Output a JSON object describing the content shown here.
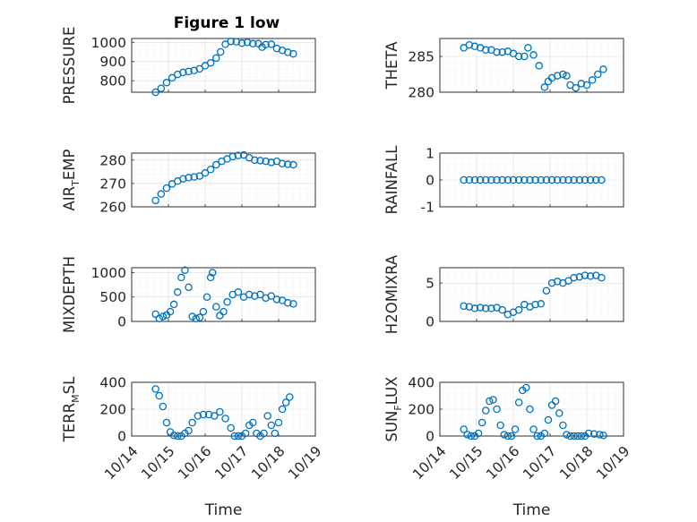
{
  "figure": {
    "title": "Figure 1 low",
    "colors": {
      "series": "#0072BD",
      "axes": "#262626",
      "grid": "#d9d9d9"
    }
  },
  "chart_data": [
    {
      "type": "scatter",
      "id": "pressure",
      "title": "Figure 1 low",
      "ylabel": "PRESSURE",
      "xlabel": "",
      "xlim": [
        0,
        5
      ],
      "ylim": [
        740,
        1020
      ],
      "yticks": [
        800,
        900,
        1000
      ],
      "xticks": [
        0,
        1,
        2,
        3,
        4,
        5
      ],
      "xticklabels": [],
      "grid": true,
      "points": [
        [
          0.65,
          740
        ],
        [
          0.8,
          760
        ],
        [
          0.95,
          790
        ],
        [
          1.1,
          815
        ],
        [
          1.25,
          833
        ],
        [
          1.4,
          843
        ],
        [
          1.55,
          848
        ],
        [
          1.7,
          853
        ],
        [
          1.85,
          862
        ],
        [
          2.0,
          878
        ],
        [
          2.15,
          893
        ],
        [
          2.3,
          918
        ],
        [
          2.42,
          950
        ],
        [
          2.55,
          990
        ],
        [
          2.7,
          1005
        ],
        [
          2.85,
          1003
        ],
        [
          3.0,
          996
        ],
        [
          3.15,
          1000
        ],
        [
          3.3,
          993
        ],
        [
          3.45,
          993
        ],
        [
          3.55,
          975
        ],
        [
          3.65,
          988
        ],
        [
          3.8,
          990
        ],
        [
          3.95,
          968
        ],
        [
          4.1,
          958
        ],
        [
          4.25,
          948
        ],
        [
          4.4,
          940
        ]
      ],
      "series_markers": "o"
    },
    {
      "type": "scatter",
      "id": "theta",
      "ylabel": "THETA",
      "xlabel": "",
      "xlim": [
        0,
        5
      ],
      "ylim": [
        280,
        287.5
      ],
      "yticks": [
        280,
        285
      ],
      "xticks": [
        0,
        1,
        2,
        3,
        4,
        5
      ],
      "xticklabels": [],
      "grid": true,
      "points": [
        [
          0.65,
          286.2
        ],
        [
          0.8,
          286.6
        ],
        [
          0.95,
          286.4
        ],
        [
          1.1,
          286.2
        ],
        [
          1.25,
          285.9
        ],
        [
          1.4,
          285.9
        ],
        [
          1.55,
          285.6
        ],
        [
          1.7,
          285.6
        ],
        [
          1.85,
          285.7
        ],
        [
          2.0,
          285.4
        ],
        [
          2.15,
          285.0
        ],
        [
          2.3,
          285.0
        ],
        [
          2.4,
          286.2
        ],
        [
          2.55,
          285.2
        ],
        [
          2.7,
          283.7
        ],
        [
          2.85,
          280.7
        ],
        [
          2.95,
          281.5
        ],
        [
          3.05,
          282.0
        ],
        [
          3.2,
          282.3
        ],
        [
          3.35,
          282.5
        ],
        [
          3.45,
          282.3
        ],
        [
          3.55,
          281.0
        ],
        [
          3.7,
          280.6
        ],
        [
          3.85,
          281.2
        ],
        [
          4.0,
          281.0
        ],
        [
          4.15,
          281.7
        ],
        [
          4.3,
          282.5
        ],
        [
          4.45,
          283.2
        ]
      ],
      "series_markers": "o"
    },
    {
      "type": "scatter",
      "id": "air_temp",
      "ylabel": "AIR_TEMP",
      "ylabel_main": "AIR",
      "ylabel_sub": "T",
      "ylabel_tail": "EMP",
      "xlabel": "",
      "xlim": [
        0,
        5
      ],
      "ylim": [
        260,
        283
      ],
      "yticks": [
        260,
        270,
        280
      ],
      "xticks": [
        0,
        1,
        2,
        3,
        4,
        5
      ],
      "xticklabels": [],
      "grid": true,
      "points": [
        [
          0.65,
          262.7
        ],
        [
          0.8,
          265.5
        ],
        [
          0.95,
          268.0
        ],
        [
          1.1,
          269.8
        ],
        [
          1.25,
          271.0
        ],
        [
          1.4,
          272.0
        ],
        [
          1.55,
          272.5
        ],
        [
          1.7,
          272.8
        ],
        [
          1.85,
          273.2
        ],
        [
          2.0,
          274.5
        ],
        [
          2.15,
          276.0
        ],
        [
          2.3,
          278.0
        ],
        [
          2.45,
          279.5
        ],
        [
          2.6,
          280.5
        ],
        [
          2.75,
          281.5
        ],
        [
          2.9,
          282.0
        ],
        [
          3.05,
          282.2
        ],
        [
          3.2,
          281.0
        ],
        [
          3.35,
          280.0
        ],
        [
          3.5,
          279.8
        ],
        [
          3.65,
          279.5
        ],
        [
          3.8,
          279.0
        ],
        [
          3.95,
          279.5
        ],
        [
          4.1,
          278.5
        ],
        [
          4.25,
          278.2
        ],
        [
          4.4,
          278.0
        ]
      ],
      "series_markers": "o"
    },
    {
      "type": "scatter",
      "id": "rainfall",
      "ylabel": "RAINFALL",
      "xlabel": "",
      "xlim": [
        0,
        5
      ],
      "ylim": [
        -1,
        1
      ],
      "yticks": [
        -1,
        0,
        1
      ],
      "xticks": [
        0,
        1,
        2,
        3,
        4,
        5
      ],
      "xticklabels": [],
      "grid": true,
      "points": [
        [
          0.65,
          0
        ],
        [
          0.8,
          0
        ],
        [
          0.95,
          0
        ],
        [
          1.1,
          0
        ],
        [
          1.25,
          0
        ],
        [
          1.4,
          0
        ],
        [
          1.55,
          0
        ],
        [
          1.7,
          0
        ],
        [
          1.85,
          0
        ],
        [
          2.0,
          0
        ],
        [
          2.15,
          0
        ],
        [
          2.3,
          0
        ],
        [
          2.45,
          0
        ],
        [
          2.6,
          0
        ],
        [
          2.75,
          0
        ],
        [
          2.9,
          0
        ],
        [
          3.05,
          0
        ],
        [
          3.2,
          0
        ],
        [
          3.35,
          0
        ],
        [
          3.5,
          0
        ],
        [
          3.65,
          0
        ],
        [
          3.8,
          0
        ],
        [
          3.95,
          0
        ],
        [
          4.1,
          0
        ],
        [
          4.25,
          0
        ],
        [
          4.4,
          0
        ]
      ],
      "series_markers": "o"
    },
    {
      "type": "scatter",
      "id": "mixdepth",
      "ylabel": "MIXDEPTH",
      "xlabel": "",
      "xlim": [
        0,
        5
      ],
      "ylim": [
        0,
        1100
      ],
      "yticks": [
        0,
        500,
        1000
      ],
      "xticks": [
        0,
        1,
        2,
        3,
        4,
        5
      ],
      "xticklabels": [],
      "grid": true,
      "points": [
        [
          0.65,
          150
        ],
        [
          0.75,
          60
        ],
        [
          0.85,
          100
        ],
        [
          0.95,
          130
        ],
        [
          1.05,
          200
        ],
        [
          1.15,
          350
        ],
        [
          1.25,
          600
        ],
        [
          1.35,
          900
        ],
        [
          1.45,
          1050
        ],
        [
          1.55,
          700
        ],
        [
          1.65,
          100
        ],
        [
          1.75,
          60
        ],
        [
          1.85,
          80
        ],
        [
          1.95,
          200
        ],
        [
          2.05,
          500
        ],
        [
          2.15,
          900
        ],
        [
          2.2,
          1000
        ],
        [
          2.3,
          300
        ],
        [
          2.4,
          120
        ],
        [
          2.5,
          200
        ],
        [
          2.6,
          400
        ],
        [
          2.75,
          550
        ],
        [
          2.9,
          600
        ],
        [
          3.05,
          500
        ],
        [
          3.2,
          550
        ],
        [
          3.35,
          520
        ],
        [
          3.5,
          550
        ],
        [
          3.65,
          480
        ],
        [
          3.8,
          520
        ],
        [
          3.95,
          450
        ],
        [
          4.1,
          430
        ],
        [
          4.25,
          380
        ],
        [
          4.4,
          360
        ]
      ],
      "series_markers": "o"
    },
    {
      "type": "scatter",
      "id": "h2omixra",
      "ylabel": "H2OMIXRA",
      "xlabel": "",
      "xlim": [
        0,
        5
      ],
      "ylim": [
        0,
        7
      ],
      "yticks": [
        0,
        5
      ],
      "xticks": [
        0,
        1,
        2,
        3,
        4,
        5
      ],
      "xticklabels": [],
      "grid": true,
      "points": [
        [
          0.65,
          2.0
        ],
        [
          0.8,
          1.9
        ],
        [
          0.95,
          1.7
        ],
        [
          1.1,
          1.8
        ],
        [
          1.25,
          1.7
        ],
        [
          1.4,
          1.7
        ],
        [
          1.55,
          1.8
        ],
        [
          1.7,
          1.5
        ],
        [
          1.85,
          0.9
        ],
        [
          2.0,
          1.2
        ],
        [
          2.15,
          1.5
        ],
        [
          2.3,
          2.2
        ],
        [
          2.45,
          1.9
        ],
        [
          2.6,
          2.2
        ],
        [
          2.75,
          2.3
        ],
        [
          2.9,
          4.0
        ],
        [
          3.05,
          5.0
        ],
        [
          3.2,
          5.2
        ],
        [
          3.35,
          5.0
        ],
        [
          3.5,
          5.3
        ],
        [
          3.65,
          5.7
        ],
        [
          3.8,
          5.8
        ],
        [
          3.95,
          6.0
        ],
        [
          4.1,
          5.9
        ],
        [
          4.25,
          6.0
        ],
        [
          4.4,
          5.7
        ]
      ],
      "series_markers": "o"
    },
    {
      "type": "scatter",
      "id": "terr_msl",
      "ylabel": "TERR_MSL",
      "ylabel_main": "TERR",
      "ylabel_sub": "M",
      "ylabel_tail": "SL",
      "xlabel": "Time",
      "xlim": [
        0,
        5
      ],
      "ylim": [
        0,
        400
      ],
      "yticks": [
        0,
        200,
        400
      ],
      "xticks": [
        0,
        1,
        2,
        3,
        4,
        5
      ],
      "xticklabels": [
        "10/14",
        "10/15",
        "10/16",
        "10/17",
        "10/18",
        "10/19"
      ],
      "grid": true,
      "points": [
        [
          0.65,
          350
        ],
        [
          0.75,
          300
        ],
        [
          0.85,
          220
        ],
        [
          0.95,
          100
        ],
        [
          1.05,
          30
        ],
        [
          1.15,
          5
        ],
        [
          1.25,
          0
        ],
        [
          1.35,
          0
        ],
        [
          1.45,
          20
        ],
        [
          1.55,
          40
        ],
        [
          1.65,
          100
        ],
        [
          1.8,
          150
        ],
        [
          1.95,
          160
        ],
        [
          2.1,
          160
        ],
        [
          2.25,
          150
        ],
        [
          2.4,
          180
        ],
        [
          2.55,
          130
        ],
        [
          2.7,
          60
        ],
        [
          2.8,
          0
        ],
        [
          2.9,
          0
        ],
        [
          3.0,
          0
        ],
        [
          3.1,
          20
        ],
        [
          3.2,
          80
        ],
        [
          3.3,
          100
        ],
        [
          3.4,
          20
        ],
        [
          3.5,
          0
        ],
        [
          3.6,
          20
        ],
        [
          3.7,
          150
        ],
        [
          3.8,
          80
        ],
        [
          3.9,
          20
        ],
        [
          4.0,
          100
        ],
        [
          4.1,
          200
        ],
        [
          4.2,
          250
        ],
        [
          4.3,
          290
        ]
      ],
      "series_markers": "o"
    },
    {
      "type": "scatter",
      "id": "sun_flux",
      "ylabel": "SUN_FLUX",
      "ylabel_main": "SUN",
      "ylabel_sub": "F",
      "ylabel_tail": "LUX",
      "xlabel": "Time",
      "xlim": [
        0,
        5
      ],
      "ylim": [
        0,
        400
      ],
      "yticks": [
        0,
        200,
        400
      ],
      "xticks": [
        0,
        1,
        2,
        3,
        4,
        5
      ],
      "xticklabels": [
        "10/14",
        "10/15",
        "10/16",
        "10/17",
        "10/18",
        "10/19"
      ],
      "grid": true,
      "points": [
        [
          0.65,
          50
        ],
        [
          0.75,
          10
        ],
        [
          0.85,
          0
        ],
        [
          0.95,
          0
        ],
        [
          1.05,
          20
        ],
        [
          1.15,
          100
        ],
        [
          1.25,
          190
        ],
        [
          1.35,
          260
        ],
        [
          1.45,
          270
        ],
        [
          1.55,
          200
        ],
        [
          1.65,
          80
        ],
        [
          1.75,
          10
        ],
        [
          1.85,
          0
        ],
        [
          1.95,
          0
        ],
        [
          2.05,
          50
        ],
        [
          2.15,
          250
        ],
        [
          2.25,
          340
        ],
        [
          2.35,
          360
        ],
        [
          2.45,
          200
        ],
        [
          2.55,
          50
        ],
        [
          2.65,
          0
        ],
        [
          2.75,
          0
        ],
        [
          2.85,
          20
        ],
        [
          2.95,
          120
        ],
        [
          3.05,
          230
        ],
        [
          3.15,
          260
        ],
        [
          3.25,
          170
        ],
        [
          3.35,
          80
        ],
        [
          3.45,
          10
        ],
        [
          3.55,
          0
        ],
        [
          3.65,
          0
        ],
        [
          3.75,
          0
        ],
        [
          3.85,
          0
        ],
        [
          3.95,
          0
        ],
        [
          4.05,
          20
        ],
        [
          4.2,
          15
        ],
        [
          4.35,
          10
        ],
        [
          4.45,
          5
        ]
      ],
      "series_markers": "o"
    }
  ]
}
